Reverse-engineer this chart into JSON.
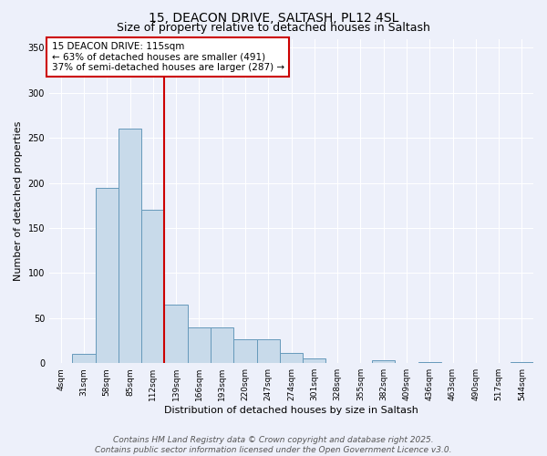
{
  "title_line1": "15, DEACON DRIVE, SALTASH, PL12 4SL",
  "title_line2": "Size of property relative to detached houses in Saltash",
  "xlabel": "Distribution of detached houses by size in Saltash",
  "ylabel": "Number of detached properties",
  "bar_labels": [
    "4sqm",
    "31sqm",
    "58sqm",
    "85sqm",
    "112sqm",
    "139sqm",
    "166sqm",
    "193sqm",
    "220sqm",
    "247sqm",
    "274sqm",
    "301sqm",
    "328sqm",
    "355sqm",
    "382sqm",
    "409sqm",
    "436sqm",
    "463sqm",
    "490sqm",
    "517sqm",
    "544sqm"
  ],
  "bar_values": [
    0,
    10,
    195,
    260,
    170,
    65,
    40,
    40,
    27,
    27,
    11,
    5,
    0,
    0,
    3,
    0,
    1,
    0,
    0,
    0,
    1
  ],
  "bar_color": "#c8daea",
  "bar_edge_color": "#6699bb",
  "vline_color": "#cc0000",
  "vline_x_index": 4,
  "annotation_text": "15 DEACON DRIVE: 115sqm\n← 63% of detached houses are smaller (491)\n37% of semi-detached houses are larger (287) →",
  "annotation_box_facecolor": "white",
  "annotation_box_edgecolor": "#cc0000",
  "ylim": [
    0,
    360
  ],
  "background_color": "#edf0fa",
  "grid_color": "white",
  "footer_line1": "Contains HM Land Registry data © Crown copyright and database right 2025.",
  "footer_line2": "Contains public sector information licensed under the Open Government Licence v3.0.",
  "title_fontsize": 10,
  "subtitle_fontsize": 9,
  "annotation_fontsize": 7.5,
  "ylabel_fontsize": 8,
  "xlabel_fontsize": 8,
  "footer_fontsize": 6.5,
  "tick_fontsize": 6.5
}
